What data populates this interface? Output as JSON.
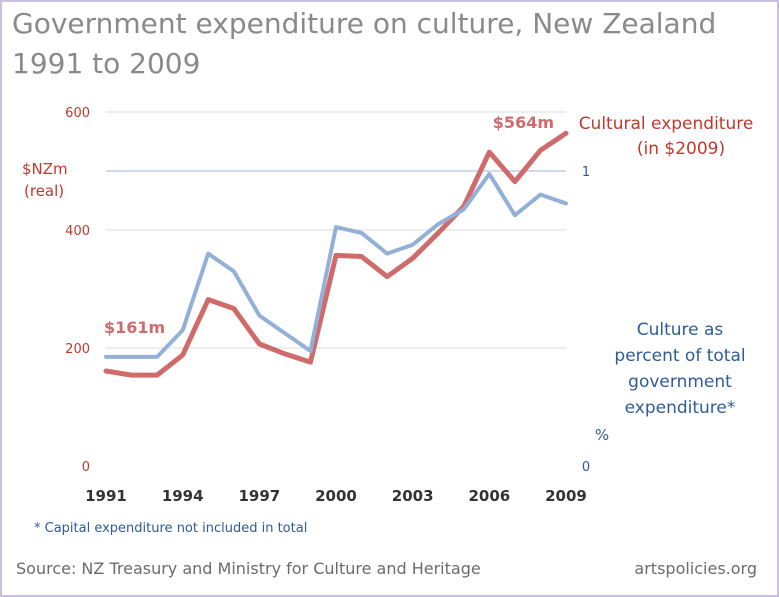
{
  "page": {
    "title_line1": "Government expenditure on culture, New Zealand",
    "title_line2": "1991 to 2009",
    "footnote": "* Capital expenditure not included in total",
    "source": "Source: NZ Treasury and Ministry for Culture and Heritage",
    "site": "artspolicies.org"
  },
  "colors": {
    "cultural": "#d06b6b",
    "percent": "#93b0d9",
    "left_axis_text": "#c0392b",
    "right_axis_text": "#2e5c99",
    "grid": "#dcdcdc",
    "ref_line": "#9fb6d6"
  },
  "chart_data": {
    "type": "line",
    "title": "Government expenditure on culture, New Zealand 1991 to 2009",
    "x": [
      1991,
      1992,
      1993,
      1994,
      1995,
      1996,
      1997,
      1998,
      1999,
      2000,
      2001,
      2002,
      2003,
      2004,
      2005,
      2006,
      2007,
      2008,
      2009
    ],
    "x_ticks": [
      "1991",
      "1994",
      "1997",
      "2000",
      "2003",
      "2006",
      "2009"
    ],
    "x_tick_values": [
      1991,
      1994,
      1997,
      2000,
      2003,
      2006,
      2009
    ],
    "xlim": [
      1991,
      2009
    ],
    "grid": "horizontal",
    "left_axis": {
      "label_line1": "$NZm",
      "label_line2": "(real)",
      "ylim": [
        0,
        600
      ],
      "ticks": [
        "0",
        "200",
        "400",
        "600"
      ],
      "tick_values": [
        0,
        200,
        400,
        600
      ]
    },
    "right_axis": {
      "label": "%",
      "ylim": [
        0,
        1.2
      ],
      "ticks": [
        "0",
        "1"
      ],
      "tick_values": [
        0,
        1
      ],
      "reference_line": 1
    },
    "series": [
      {
        "name_line1": "Cultural expenditure",
        "name_line2": "(in $2009)",
        "axis": "left",
        "values": [
          161,
          154,
          154,
          188,
          282,
          267,
          207,
          190,
          176,
          357,
          355,
          321,
          352,
          395,
          440,
          532,
          482,
          535,
          564
        ],
        "start_label": "$161m",
        "end_label": "$564m"
      },
      {
        "name_lines": [
          "Culture as",
          "percent of  total",
          "government",
          "expenditure*"
        ],
        "axis": "right",
        "values": [
          0.37,
          0.37,
          0.37,
          0.46,
          0.72,
          0.66,
          0.51,
          0.45,
          0.39,
          0.81,
          0.79,
          0.72,
          0.75,
          0.82,
          0.87,
          0.99,
          0.85,
          0.92,
          0.89
        ]
      }
    ]
  }
}
